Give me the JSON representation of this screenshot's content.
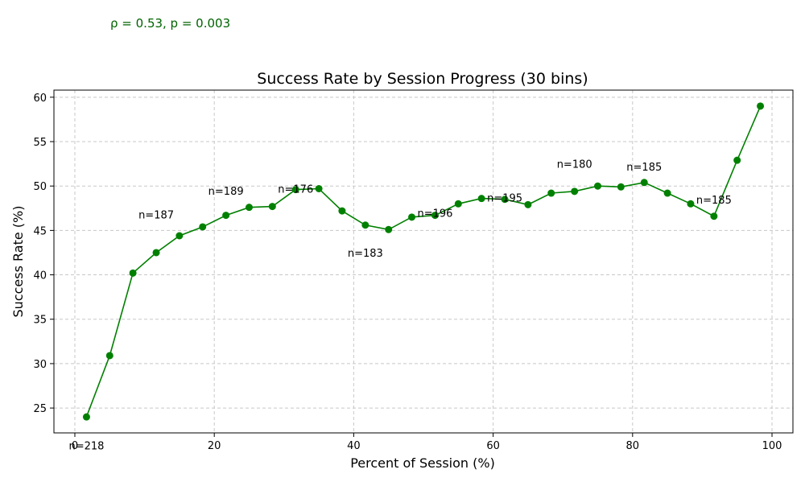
{
  "chart_data": {
    "type": "line",
    "title": "Success Rate by Session Progress (30 bins)",
    "stat_annotation": "ρ = 0.53, p = 0.003",
    "xlabel": "Percent of Session (%)",
    "ylabel": "Success Rate (%)",
    "xlim": [
      -3,
      103
    ],
    "ylim": [
      22.2,
      60.8
    ],
    "xticks": [
      0,
      20,
      40,
      60,
      80,
      100
    ],
    "yticks": [
      25,
      30,
      35,
      40,
      45,
      50,
      55,
      60
    ],
    "grid": true,
    "series": [
      {
        "color": "#008000",
        "x": [
          1.67,
          5.0,
          8.33,
          11.67,
          15.0,
          18.33,
          21.67,
          25.0,
          28.33,
          31.67,
          35.0,
          38.33,
          41.67,
          45.0,
          48.33,
          51.67,
          55.0,
          58.33,
          61.67,
          65.0,
          68.33,
          71.67,
          75.0,
          78.33,
          81.67,
          85.0,
          88.33,
          91.67,
          95.0,
          98.33
        ],
        "y": [
          24.0,
          30.9,
          40.2,
          42.5,
          44.4,
          45.4,
          46.7,
          47.6,
          47.7,
          49.6,
          49.7,
          47.2,
          45.6,
          45.1,
          46.5,
          46.7,
          48.0,
          48.6,
          48.5,
          47.9,
          49.2,
          49.4,
          50.0,
          49.9,
          50.4,
          49.2,
          48.0,
          46.6,
          52.9,
          59.0
        ]
      }
    ],
    "annotations": [
      {
        "text": "n=218",
        "x": 1.67,
        "y": 20.7
      },
      {
        "text": "n=187",
        "x": 11.67,
        "y": 46.7
      },
      {
        "text": "n=189",
        "x": 21.67,
        "y": 49.4
      },
      {
        "text": "n=176",
        "x": 31.67,
        "y": 49.6
      },
      {
        "text": "n=183",
        "x": 41.67,
        "y": 42.4
      },
      {
        "text": "n=196",
        "x": 51.67,
        "y": 46.9
      },
      {
        "text": "n=195",
        "x": 61.67,
        "y": 48.6
      },
      {
        "text": "n=180",
        "x": 71.67,
        "y": 52.4
      },
      {
        "text": "n=185",
        "x": 81.67,
        "y": 52.1
      },
      {
        "text": "n=185",
        "x": 91.67,
        "y": 48.4
      }
    ]
  }
}
